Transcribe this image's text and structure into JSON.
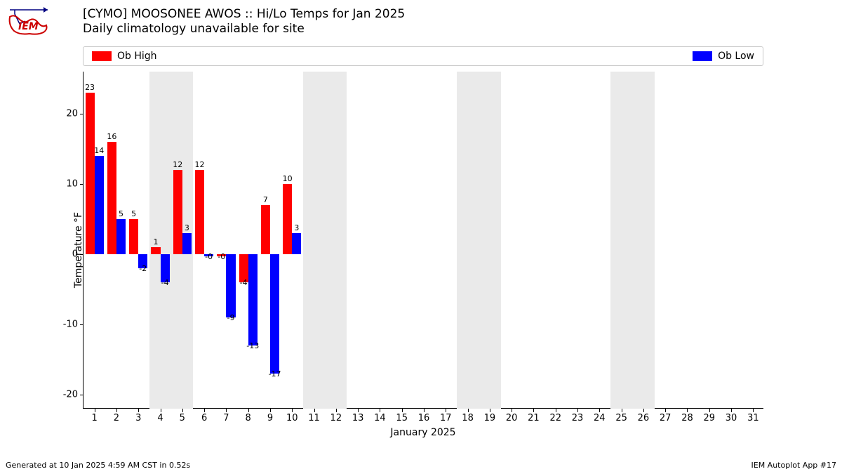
{
  "title_line1": "[CYMO] MOOSONEE AWOS :: Hi/Lo Temps for Jan 2025",
  "title_line2": "Daily climatology unavailable for site",
  "legend": {
    "high_label": "Ob High",
    "low_label": "Ob Low",
    "high_color": "#ff0000",
    "low_color": "#0000ff"
  },
  "chart": {
    "type": "bar",
    "ylabel": "Temperature °F",
    "xlabel": "January 2025",
    "ylim": [
      -22,
      26
    ],
    "yticks": [
      -20,
      -10,
      0,
      10,
      20
    ],
    "x_days": [
      1,
      2,
      3,
      4,
      5,
      6,
      7,
      8,
      9,
      10,
      11,
      12,
      13,
      14,
      15,
      16,
      17,
      18,
      19,
      20,
      21,
      22,
      23,
      24,
      25,
      26,
      27,
      28,
      29,
      30,
      31
    ],
    "weekend_bands": [
      [
        4,
        5
      ],
      [
        11,
        12
      ],
      [
        18,
        19
      ],
      [
        25,
        26
      ]
    ],
    "bar_group_width": 0.84,
    "colors": {
      "high": "#ff0000",
      "low": "#0000ff",
      "weekend": "#eaeaea",
      "text": "#000000",
      "bg": "#ffffff"
    },
    "label_fontsize": 11,
    "axis_fontsize": 13,
    "data": [
      {
        "day": 1,
        "high": 23,
        "low": 14,
        "high_label": "23",
        "low_label": "14"
      },
      {
        "day": 2,
        "high": 16,
        "low": 5,
        "high_label": "16",
        "low_label": "5"
      },
      {
        "day": 3,
        "high": 5,
        "low": -2,
        "high_label": "5",
        "low_label": "-2"
      },
      {
        "day": 4,
        "high": 1,
        "low": -4,
        "high_label": "1",
        "low_label": "-4"
      },
      {
        "day": 5,
        "high": 12,
        "low": 3,
        "high_label": "12",
        "low_label": "3"
      },
      {
        "day": 6,
        "high": 12,
        "low": -0.3,
        "high_label": "12",
        "low_label": "-0"
      },
      {
        "day": 7,
        "high": -0.3,
        "low": -9,
        "high_label": "-0",
        "low_label": "-9"
      },
      {
        "day": 8,
        "high": -4,
        "low": -13,
        "high_label": "-4",
        "low_label": "-13"
      },
      {
        "day": 9,
        "high": 7,
        "low": -17,
        "high_label": "7",
        "low_label": "-17"
      },
      {
        "day": 10,
        "high": 10,
        "low": 3,
        "high_label": "10",
        "low_label": "3"
      }
    ]
  },
  "footer_left": "Generated at 10 Jan 2025 4:59 AM CST in 0.52s",
  "footer_right": "IEM Autoplot App #17"
}
